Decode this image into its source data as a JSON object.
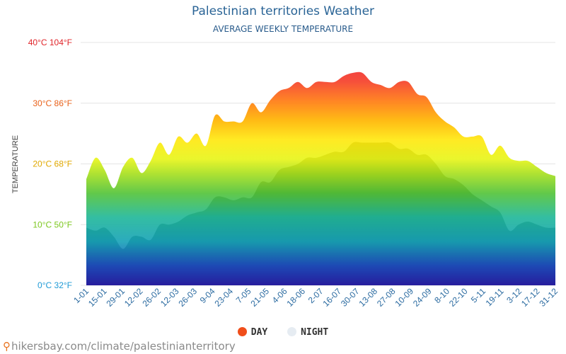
{
  "header": {
    "title": "Palestinian territories Weather",
    "subtitle": "AVERAGE WEEKLY TEMPERATURE"
  },
  "legend": {
    "day_label": "DAY",
    "night_label": "NIGHT",
    "day_color": "#f04e1a",
    "night_color": "#e6ecf2"
  },
  "footer": {
    "source_text": "hikersbay.com/climate/palestinianterritory",
    "pin_icon": "map-pin-icon"
  },
  "chart_data": {
    "type": "area",
    "title": "Palestinian territories Weather",
    "subtitle": "AVERAGE WEEKLY TEMPERATURE",
    "ylabel": "TEMPERATURE",
    "ylim": [
      0,
      40
    ],
    "y_ticks": [
      {
        "value": 0,
        "label": "0°C 32°F",
        "color": "#1e9ad6"
      },
      {
        "value": 10,
        "label": "10°C 50°F",
        "color": "#7cc71e"
      },
      {
        "value": 20,
        "label": "20°C 68°F",
        "color": "#e0a800"
      },
      {
        "value": 30,
        "label": "30°C 86°F",
        "color": "#e8611a"
      },
      {
        "value": 40,
        "label": "40°C 104°F",
        "color": "#e0252a"
      }
    ],
    "grid": true,
    "legend_position": "bottom",
    "x_tick_labels": [
      "1-01",
      "15-01",
      "29-01",
      "12-02",
      "26-02",
      "12-03",
      "26-03",
      "9-04",
      "23-04",
      "7-05",
      "21-05",
      "4-06",
      "18-06",
      "2-07",
      "16-07",
      "30-07",
      "13-08",
      "27-08",
      "10-09",
      "24-09",
      "8-10",
      "22-10",
      "5-11",
      "19-11",
      "3-12",
      "17-12",
      "31-12"
    ],
    "series": [
      {
        "name": "DAY",
        "values": [
          17.5,
          21,
          19,
          16,
          19.5,
          21,
          18.5,
          20.5,
          23.5,
          21.5,
          24.5,
          23.5,
          25,
          23,
          28,
          27,
          27,
          27,
          30,
          28.5,
          30.5,
          32,
          32.5,
          33.5,
          32.5,
          33.5,
          33.5,
          33.5,
          34.5,
          35,
          35,
          33.5,
          33,
          32.5,
          33.5,
          33.5,
          31.5,
          31,
          28.5,
          27,
          26,
          24.5,
          24.5,
          24.5,
          21.5,
          23,
          21,
          20.5,
          20.5,
          19.5,
          18.5,
          18
        ]
      },
      {
        "name": "NIGHT",
        "values": [
          9.5,
          9,
          9.5,
          8,
          6,
          8,
          8,
          7.5,
          10,
          10,
          10.5,
          11.5,
          12,
          12.5,
          14.5,
          14.5,
          14,
          14.5,
          14.5,
          17,
          17,
          19,
          19.5,
          20,
          21,
          21,
          21.5,
          22,
          22,
          23.5,
          23.5,
          23.5,
          23.5,
          23.5,
          22.5,
          22.5,
          21.5,
          21.5,
          20,
          18,
          17.5,
          16.5,
          15,
          14,
          13,
          12,
          9,
          10,
          10.5,
          10,
          9.5,
          9.5
        ]
      }
    ]
  }
}
